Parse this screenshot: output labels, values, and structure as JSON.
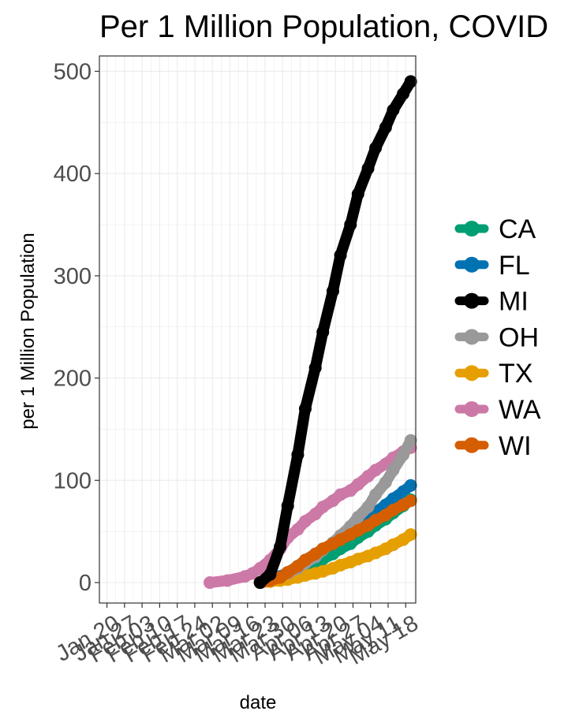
{
  "chart_data": {
    "type": "line",
    "title": "Per 1 Million Population, COVID",
    "xlabel": "date",
    "ylabel": "per 1 Million Population",
    "ylim": [
      -20,
      515
    ],
    "xlim": [
      "2020-01-17",
      "2020-05-22"
    ],
    "grid": true,
    "legend_position": "right",
    "y_ticks": [
      "0",
      "100",
      "200",
      "300",
      "400",
      "500"
    ],
    "x_ticks": [
      "Jan 20",
      "Jan 27",
      "Feb 03",
      "Feb 10",
      "Feb 17",
      "Feb 24",
      "Mar 02",
      "Mar 09",
      "Mar 16",
      "Mar 23",
      "Mar 30",
      "Apr 06",
      "Apr 13",
      "Apr 20",
      "Apr 27",
      "May 04",
      "May 11",
      "May 18"
    ],
    "dates": [
      "2020-03-01",
      "2020-03-08",
      "2020-03-15",
      "2020-03-18",
      "2020-03-21",
      "2020-03-25",
      "2020-03-29",
      "2020-04-01",
      "2020-04-05",
      "2020-04-08",
      "2020-04-12",
      "2020-04-15",
      "2020-04-19",
      "2020-04-22",
      "2020-04-26",
      "2020-04-29",
      "2020-05-03",
      "2020-05-06",
      "2020-05-10",
      "2020-05-13",
      "2020-05-17",
      "2020-05-20"
    ],
    "series": [
      {
        "name": "WA",
        "color": "#CC79A7",
        "values": [
          0,
          2,
          6,
          9,
          14,
          22,
          33,
          44,
          52,
          60,
          67,
          74,
          80,
          86,
          90,
          96,
          104,
          110,
          116,
          122,
          128,
          132
        ]
      },
      {
        "name": "FL",
        "color": "#0072B2",
        "values": [
          null,
          null,
          null,
          null,
          0,
          2,
          6,
          10,
          16,
          22,
          28,
          33,
          38,
          44,
          50,
          56,
          63,
          69,
          76,
          82,
          89,
          95
        ]
      },
      {
        "name": "CA",
        "color": "#009E73",
        "values": [
          null,
          null,
          null,
          null,
          0,
          2,
          4,
          7,
          11,
          15,
          19,
          23,
          28,
          33,
          38,
          44,
          50,
          56,
          62,
          68,
          75,
          81
        ]
      },
      {
        "name": "TX",
        "color": "#E69F00",
        "values": [
          null,
          null,
          null,
          null,
          0,
          1,
          2,
          3,
          5,
          7,
          9,
          11,
          14,
          17,
          20,
          23,
          26,
          29,
          33,
          37,
          42,
          47
        ]
      },
      {
        "name": "OH",
        "color": "#999999",
        "values": [
          null,
          null,
          null,
          null,
          0,
          2,
          5,
          9,
          14,
          19,
          25,
          32,
          39,
          46,
          55,
          64,
          74,
          86,
          98,
          110,
          125,
          139
        ]
      },
      {
        "name": "WI",
        "color": "#D55E00",
        "values": [
          null,
          null,
          null,
          null,
          0,
          2,
          5,
          10,
          16,
          22,
          28,
          33,
          38,
          42,
          47,
          51,
          56,
          61,
          66,
          71,
          76,
          80
        ]
      },
      {
        "name": "MI",
        "color": "#000000",
        "values": [
          null,
          null,
          null,
          null,
          0,
          8,
          35,
          75,
          125,
          170,
          210,
          245,
          285,
          320,
          350,
          380,
          405,
          425,
          445,
          462,
          478,
          490
        ]
      }
    ],
    "legend_order": [
      "CA",
      "FL",
      "MI",
      "OH",
      "TX",
      "WA",
      "WI"
    ]
  }
}
